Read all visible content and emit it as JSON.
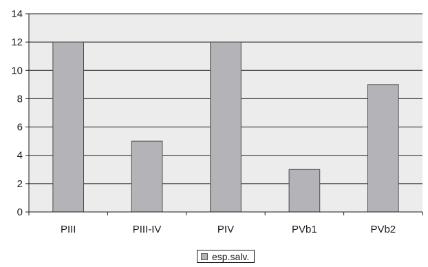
{
  "chart_data": {
    "type": "bar",
    "categories": [
      "PIII",
      "PIII-IV",
      "PIV",
      "PVb1",
      "PVb2"
    ],
    "series": [
      {
        "name": "esp.salv.",
        "values": [
          12,
          5,
          12,
          3,
          9
        ]
      }
    ],
    "ylim": [
      0,
      14
    ],
    "yticks": [
      0,
      2,
      4,
      6,
      8,
      10,
      12,
      14
    ],
    "grid": true,
    "legend_position": "bottom",
    "colors": {
      "plot_background": "#ececec",
      "bar_fill": "#b4b4b8",
      "bar_stroke": "#4a4a4a",
      "gridline": "#1a1a1a"
    }
  }
}
